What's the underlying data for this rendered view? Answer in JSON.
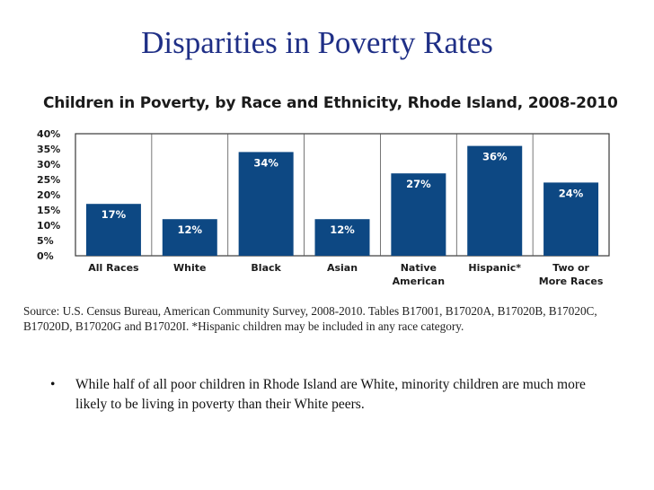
{
  "slide": {
    "title": "Disparities in Poverty Rates",
    "source": "Source: U.S. Census Bureau, American Community Survey, 2008-2010. Tables B17001, B17020A, B17020B, B17020C, B17020D, B17020G and B17020I. *Hispanic children may be included in any race category.",
    "bullets": [
      {
        "marker": "•",
        "text": "While half of all poor children in Rhode Island are White, minority children are much more likely to be living in poverty than their White peers."
      }
    ]
  },
  "colors": {
    "bar": "#0d4883",
    "title": "#1f2f86",
    "label_on_bar": "#ffffff"
  },
  "chart_data": {
    "type": "bar",
    "title": "Children in Poverty, by Race and Ethnicity, Rhode Island, 2008-2010",
    "categories": [
      [
        "All Races"
      ],
      [
        "White"
      ],
      [
        "Black"
      ],
      [
        "Asian"
      ],
      [
        "Native",
        "American"
      ],
      [
        "Hispanic*"
      ],
      [
        "Two or",
        "More Races"
      ]
    ],
    "values": [
      17,
      12,
      34,
      12,
      27,
      36,
      24
    ],
    "data_labels": [
      "17%",
      "12%",
      "34%",
      "12%",
      "27%",
      "36%",
      "24%"
    ],
    "y_ticks": [
      "0%",
      "5%",
      "10%",
      "15%",
      "20%",
      "25%",
      "30%",
      "35%",
      "40%"
    ],
    "ylim": [
      0,
      40
    ],
    "xlabel": "",
    "ylabel": "",
    "grid": "vertical separators",
    "legend": "none"
  }
}
